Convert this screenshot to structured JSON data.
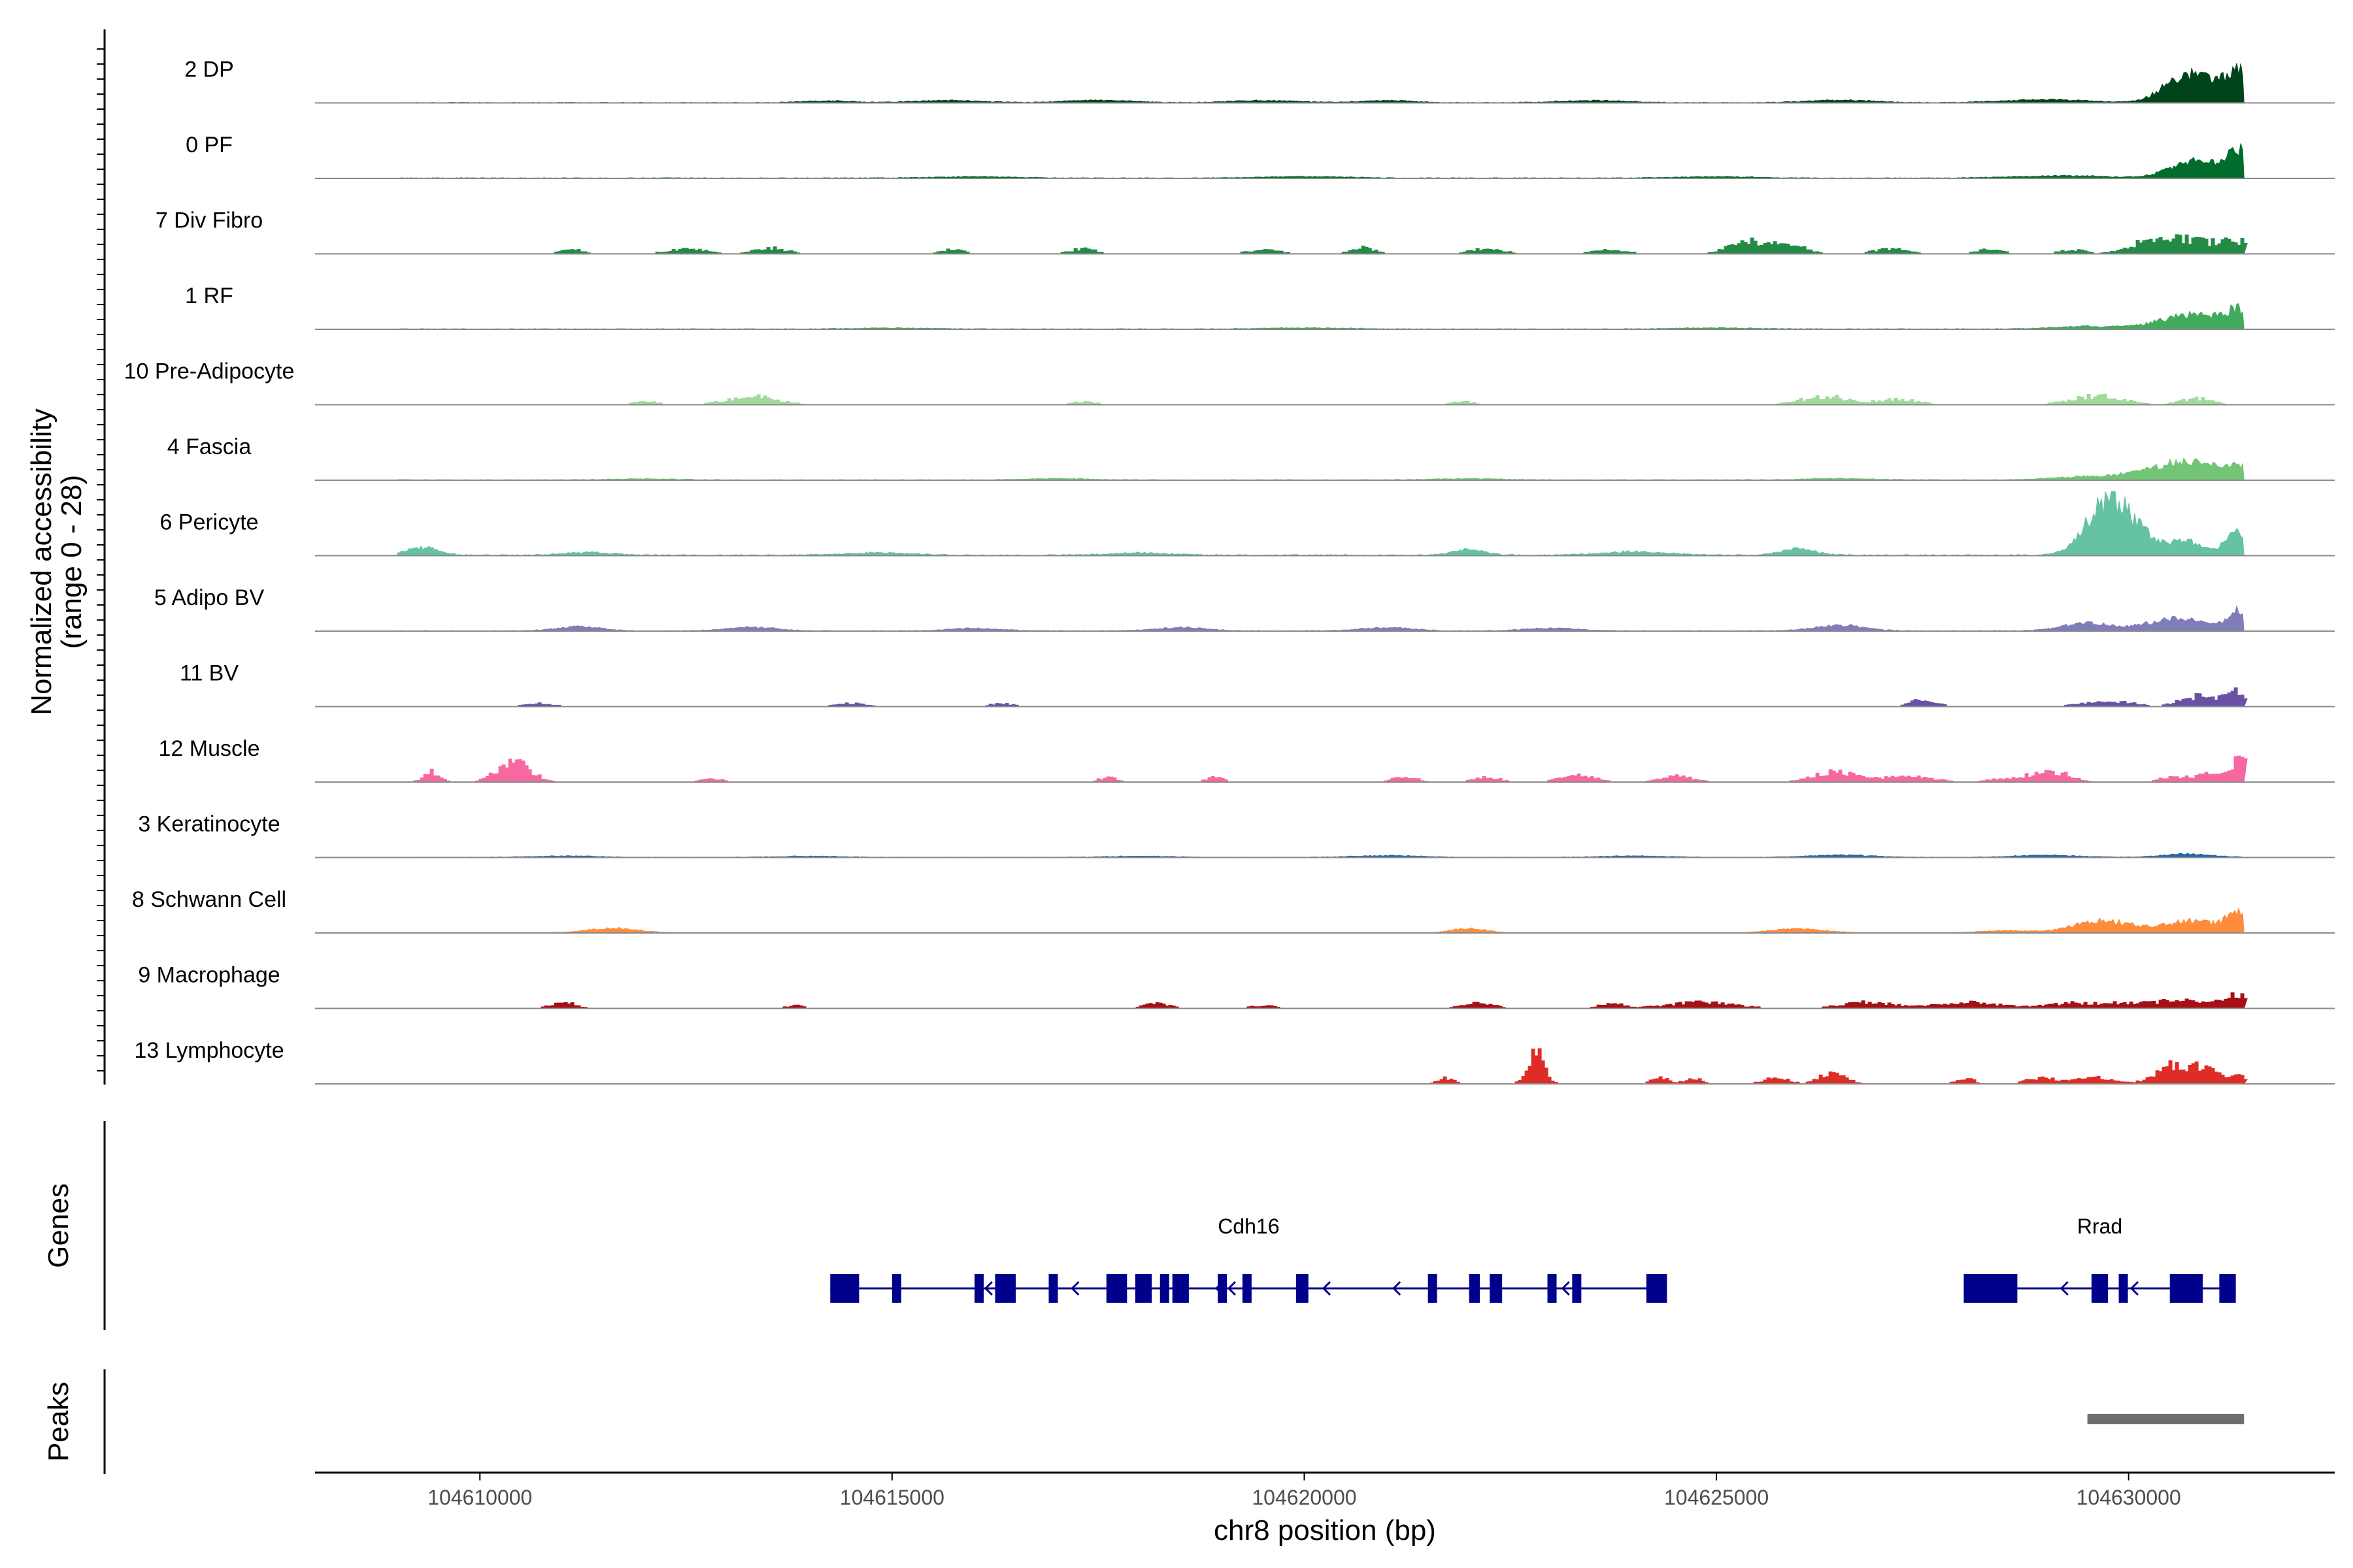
{
  "chart_data": {
    "type": "area",
    "title": "",
    "ylabel": "Normalized accessibility",
    "ylabel_range": "(range 0 - 28)",
    "y_range": [
      0,
      28
    ],
    "xlabel": "chr8 position (bp)",
    "x_range": [
      104608000,
      104632500
    ],
    "x_ticks": [
      104610000,
      104615000,
      104620000,
      104625000,
      104630000
    ],
    "x_tick_labels": [
      "104610000",
      "104615000",
      "104620000",
      "104625000",
      "104630000"
    ],
    "data_extent": [
      104609000,
      104631400
    ],
    "tracks": [
      {
        "label": "2 DP",
        "color": "#00441b",
        "style": "continuous",
        "baseline": 0.3,
        "peaks": [
          [
            104614200,
            0.8,
            300
          ],
          [
            104615700,
            1.0,
            400
          ],
          [
            104617500,
            1.0,
            400
          ],
          [
            104619500,
            0.9,
            400
          ],
          [
            104621000,
            1.0,
            300
          ],
          [
            104623500,
            1.0,
            400
          ],
          [
            104626500,
            1.0,
            400
          ],
          [
            104629000,
            1.4,
            500
          ],
          [
            104630650,
            10,
            250
          ],
          [
            104631000,
            6,
            250
          ],
          [
            104631350,
            12,
            150
          ]
        ]
      },
      {
        "label": "0 PF",
        "color": "#006d2c",
        "style": "continuous",
        "baseline": 0.3,
        "peaks": [
          [
            104616000,
            0.6,
            500
          ],
          [
            104620000,
            0.7,
            500
          ],
          [
            104625000,
            0.6,
            500
          ],
          [
            104629200,
            1.0,
            600
          ],
          [
            104630700,
            6,
            250
          ],
          [
            104631050,
            3.5,
            250
          ],
          [
            104631350,
            11,
            150
          ]
        ]
      },
      {
        "label": "7 Div Fibro",
        "color": "#238b45",
        "style": "sparse",
        "peaks": [
          [
            104611100,
            2.5,
            120
          ],
          [
            104612500,
            2.2,
            250
          ],
          [
            104613500,
            2.8,
            200
          ],
          [
            104615700,
            2.0,
            150
          ],
          [
            104617300,
            2.5,
            150
          ],
          [
            104619500,
            1.8,
            200
          ],
          [
            104620700,
            3.0,
            150
          ],
          [
            104622200,
            2.5,
            200
          ],
          [
            104623700,
            2.0,
            200
          ],
          [
            104625400,
            6,
            250
          ],
          [
            104625900,
            3.5,
            200
          ],
          [
            104627100,
            2.5,
            200
          ],
          [
            104628300,
            2.2,
            150
          ],
          [
            104629300,
            2.0,
            150
          ],
          [
            104630200,
            5.0,
            250
          ],
          [
            104630700,
            6.5,
            300
          ],
          [
            104631300,
            6.0,
            200
          ]
        ]
      },
      {
        "label": "1 RF",
        "color": "#41ab5d",
        "style": "continuous",
        "baseline": 0.3,
        "peaks": [
          [
            104615000,
            0.4,
            500
          ],
          [
            104620000,
            0.5,
            500
          ],
          [
            104625000,
            0.5,
            500
          ],
          [
            104629500,
            1.2,
            400
          ],
          [
            104630500,
            3.0,
            300
          ],
          [
            104630900,
            5.0,
            300
          ],
          [
            104631350,
            8.0,
            150
          ]
        ]
      },
      {
        "label": "10 Pre-Adipocyte",
        "color": "#a1d99b",
        "style": "sparse",
        "peaks": [
          [
            104612000,
            1.5,
            150
          ],
          [
            104613300,
            4.0,
            300
          ],
          [
            104617300,
            1.5,
            150
          ],
          [
            104621900,
            1.5,
            150
          ],
          [
            104626300,
            4.0,
            300
          ],
          [
            104627200,
            2.5,
            250
          ],
          [
            104629600,
            4.5,
            300
          ],
          [
            104630800,
            3.0,
            200
          ]
        ]
      },
      {
        "label": "4 Fascia",
        "color": "#74c476",
        "style": "continuous",
        "baseline": 0.3,
        "peaks": [
          [
            104612000,
            0.5,
            400
          ],
          [
            104617000,
            0.6,
            400
          ],
          [
            104622000,
            0.6,
            400
          ],
          [
            104626500,
            0.6,
            400
          ],
          [
            104629500,
            1.5,
            400
          ],
          [
            104630250,
            3.0,
            300
          ],
          [
            104630750,
            7.5,
            300
          ],
          [
            104631350,
            6.0,
            200
          ]
        ]
      },
      {
        "label": "6 Pericyte",
        "color": "#66c2a4",
        "style": "continuous",
        "baseline": 0.5,
        "peaks": [
          [
            104609300,
            3.5,
            200
          ],
          [
            104611300,
            1.2,
            300
          ],
          [
            104614800,
            1.0,
            400
          ],
          [
            104618000,
            1.0,
            400
          ],
          [
            104622000,
            2.5,
            200
          ],
          [
            104624000,
            1.5,
            400
          ],
          [
            104626000,
            3.0,
            200
          ],
          [
            104629700,
            19,
            250
          ],
          [
            104630000,
            11,
            250
          ],
          [
            104630700,
            6,
            250
          ],
          [
            104631350,
            11,
            150
          ]
        ]
      },
      {
        "label": "5 Adipo BV",
        "color": "#807dba",
        "style": "continuous",
        "baseline": 0.3,
        "peaks": [
          [
            104611200,
            2.0,
            250
          ],
          [
            104613300,
            1.5,
            300
          ],
          [
            104616000,
            1.2,
            300
          ],
          [
            104618500,
            1.5,
            300
          ],
          [
            104621000,
            1.5,
            300
          ],
          [
            104623000,
            1.3,
            300
          ],
          [
            104626500,
            2.5,
            300
          ],
          [
            104629500,
            3.5,
            300
          ],
          [
            104630300,
            2.5,
            250
          ],
          [
            104630700,
            5.0,
            250
          ],
          [
            104631350,
            9.0,
            150
          ]
        ]
      },
      {
        "label": "11 BV",
        "color": "#6a51a3",
        "style": "sparse",
        "peaks": [
          [
            104610700,
            1.5,
            200
          ],
          [
            104614500,
            1.5,
            200
          ],
          [
            104616300,
            1.5,
            150
          ],
          [
            104627500,
            3.5,
            150
          ],
          [
            104629600,
            2.0,
            250
          ],
          [
            104630000,
            1.5,
            150
          ],
          [
            104630800,
            5.0,
            200
          ],
          [
            104631300,
            7.0,
            150
          ]
        ]
      },
      {
        "label": "12 Muscle",
        "color": "#f768a1",
        "style": "sparse",
        "peaks": [
          [
            104609400,
            5.0,
            100
          ],
          [
            104610400,
            10,
            200
          ],
          [
            104612800,
            1.5,
            150
          ],
          [
            104617600,
            2.5,
            100
          ],
          [
            104618900,
            2.5,
            100
          ],
          [
            104621200,
            2.5,
            150
          ],
          [
            104622200,
            2.5,
            150
          ],
          [
            104623300,
            3.5,
            200
          ],
          [
            104624500,
            3.0,
            200
          ],
          [
            104626400,
            5.0,
            250
          ],
          [
            104627300,
            3.0,
            300
          ],
          [
            104628700,
            2.5,
            300
          ],
          [
            104629100,
            4.0,
            200
          ],
          [
            104630500,
            2.0,
            150
          ],
          [
            104631000,
            4.0,
            250
          ],
          [
            104631350,
            10,
            100
          ]
        ]
      },
      {
        "label": "3 Keratinocyte",
        "color": "#2166ac",
        "style": "continuous",
        "baseline": 0.2,
        "peaks": [
          [
            104611000,
            0.6,
            400
          ],
          [
            104614000,
            0.5,
            400
          ],
          [
            104618000,
            0.5,
            400
          ],
          [
            104621000,
            0.8,
            400
          ],
          [
            104624000,
            0.6,
            400
          ],
          [
            104626500,
            1.0,
            400
          ],
          [
            104629000,
            0.9,
            400
          ],
          [
            104630700,
            1.5,
            300
          ]
        ]
      },
      {
        "label": "8 Schwann Cell",
        "color": "#fd8d3c",
        "style": "continuous",
        "baseline": 0.2,
        "peaks": [
          [
            104611600,
            2.0,
            300
          ],
          [
            104622000,
            2.0,
            200
          ],
          [
            104626000,
            1.8,
            300
          ],
          [
            104628500,
            1.0,
            300
          ],
          [
            104629700,
            5.5,
            350
          ],
          [
            104630750,
            5.5,
            300
          ],
          [
            104631350,
            9.0,
            150
          ]
        ]
      },
      {
        "label": "9 Macrophage",
        "color": "#a50f15",
        "style": "sparse",
        "peaks": [
          [
            104611000,
            3.0,
            150
          ],
          [
            104613800,
            1.5,
            100
          ],
          [
            104618200,
            2.5,
            150
          ],
          [
            104619500,
            1.5,
            150
          ],
          [
            104622100,
            2.5,
            200
          ],
          [
            104623700,
            2.5,
            150
          ],
          [
            104624800,
            3.0,
            400
          ],
          [
            104626800,
            3.0,
            300
          ],
          [
            104628000,
            3.0,
            400
          ],
          [
            104629300,
            2.5,
            300
          ],
          [
            104630000,
            2.5,
            300
          ],
          [
            104630700,
            4.0,
            300
          ],
          [
            104631300,
            7.0,
            150
          ]
        ]
      },
      {
        "label": "13 Lymphocyte",
        "color": "#de2d26",
        "style": "sparse",
        "peaks": [
          [
            104621700,
            3.0,
            100
          ],
          [
            104622800,
            15,
            100
          ],
          [
            104624300,
            3.0,
            100
          ],
          [
            104624700,
            3.0,
            100
          ],
          [
            104625700,
            3.0,
            150
          ],
          [
            104626400,
            6.0,
            150
          ],
          [
            104628000,
            3.0,
            100
          ],
          [
            104628900,
            3.0,
            150
          ],
          [
            104629500,
            3.5,
            250
          ],
          [
            104630500,
            8.0,
            200
          ],
          [
            104630900,
            7.0,
            200
          ],
          [
            104631300,
            4.0,
            100
          ]
        ]
      }
    ],
    "genes_track": {
      "label": "Genes",
      "color": "#00008b",
      "genes": [
        {
          "name": "Cdh16",
          "start": 104614250,
          "end": 104624400,
          "strand": "-",
          "exons": [
            [
              104614250,
              104614600
            ],
            [
              104615000,
              104615100
            ],
            [
              104616000,
              104616080
            ],
            [
              104616250,
              104616500
            ],
            [
              104616900,
              104617000
            ],
            [
              104617600,
              104617850
            ],
            [
              104617950,
              104618150
            ],
            [
              104618250,
              104618300
            ],
            [
              104618400,
              104618600
            ],
            [
              104618950,
              104619050
            ],
            [
              104619250,
              104619350
            ],
            [
              104619900,
              104620050
            ],
            [
              104621500,
              104621600
            ],
            [
              104622000,
              104622130
            ],
            [
              104622250,
              104622400
            ],
            [
              104622950,
              104623000
            ],
            [
              104623250,
              104623300
            ],
            [
              104624150,
              104624400
            ]
          ],
          "arrows": [
            104616150,
            104617200,
            104618950,
            104619100,
            104620250,
            104621100,
            104623150
          ]
        },
        {
          "name": "Rrad",
          "start": 104628000,
          "end": 104631300,
          "strand": "-",
          "exons": [
            [
              104628000,
              104628650
            ],
            [
              104629550,
              104629750
            ],
            [
              104629880,
              104629950
            ],
            [
              104630500,
              104630900
            ],
            [
              104631100,
              104631300
            ]
          ],
          "arrows": [
            104629200,
            104630050
          ]
        }
      ]
    },
    "peaks_track": {
      "label": "Peaks",
      "color": "#6e6e6e",
      "regions": [
        [
          104629500,
          104631400
        ]
      ]
    }
  }
}
